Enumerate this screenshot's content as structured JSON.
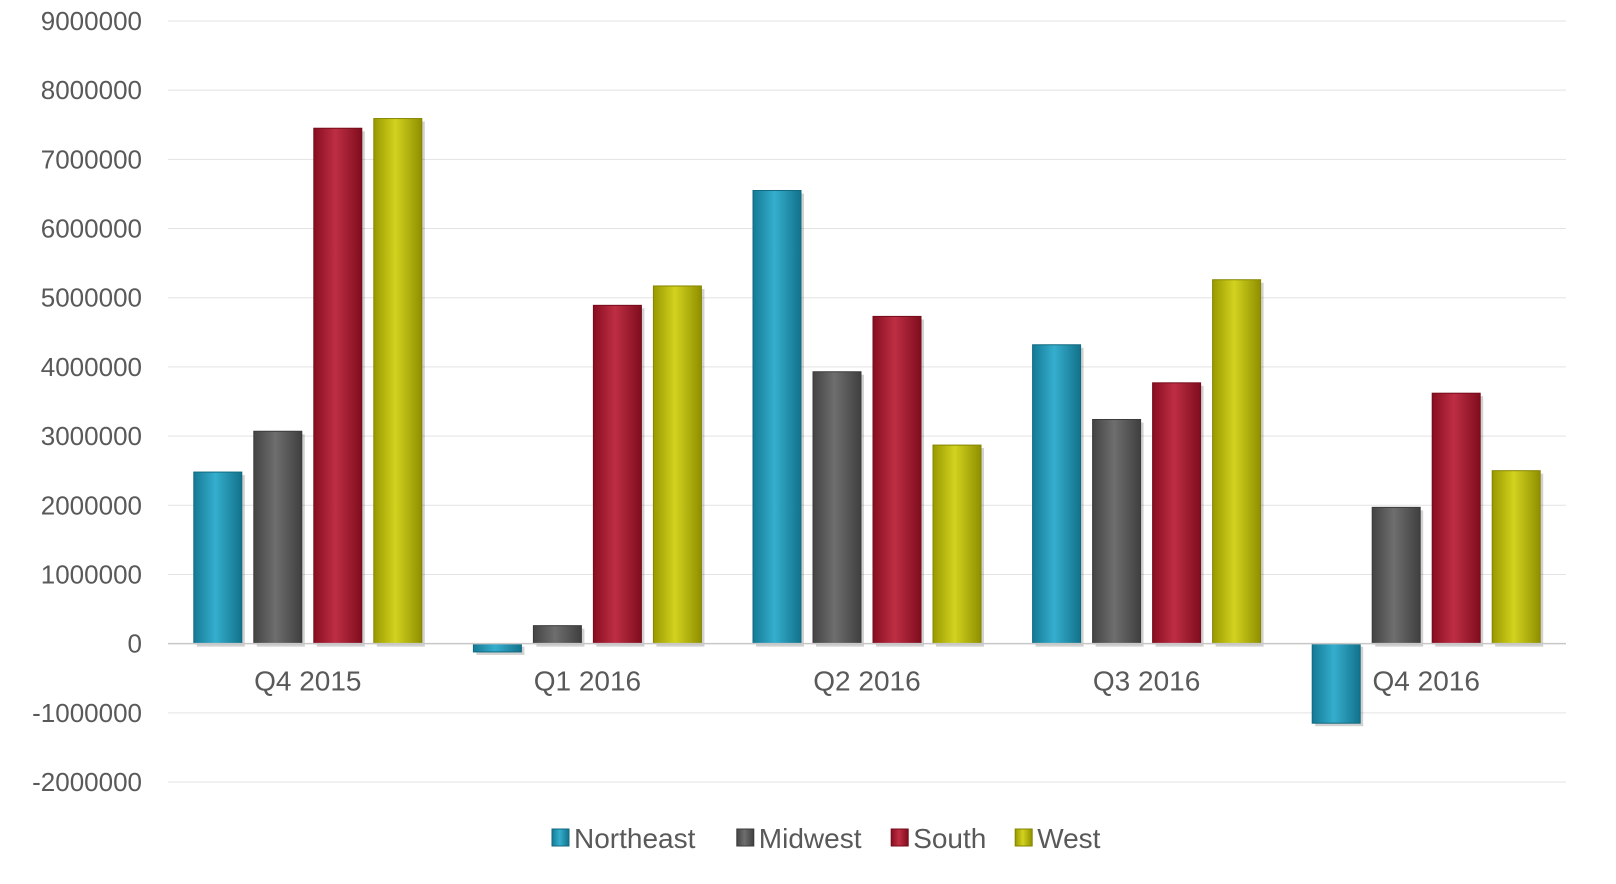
{
  "chart_data": {
    "type": "bar",
    "title": "",
    "xlabel": "",
    "ylabel": "",
    "categories": [
      "Q4 2015",
      "Q1 2016",
      "Q2 2016",
      "Q3 2016",
      "Q4 2016"
    ],
    "series": [
      {
        "name": "Northeast",
        "values": [
          2480000,
          -120000,
          6550000,
          4320000,
          -1150000
        ]
      },
      {
        "name": "Midwest",
        "values": [
          3070000,
          260000,
          3930000,
          3240000,
          1970000
        ]
      },
      {
        "name": "South",
        "values": [
          7450000,
          4890000,
          4730000,
          3770000,
          3620000
        ]
      },
      {
        "name": "West",
        "values": [
          7590000,
          5170000,
          2870000,
          5260000,
          2500000
        ]
      }
    ],
    "ylim": [
      -2000000,
      9000000
    ],
    "yticks": [
      "-2000000",
      "-1000000",
      "0",
      "1000000",
      "2000000",
      "3000000",
      "4000000",
      "5000000",
      "6000000",
      "7000000",
      "8000000",
      "9000000"
    ],
    "grid": true,
    "legend_position": "bottom",
    "colors": [
      "#1aa3c7",
      "#5a5a5a",
      "#b5122a",
      "#cccc00"
    ]
  }
}
